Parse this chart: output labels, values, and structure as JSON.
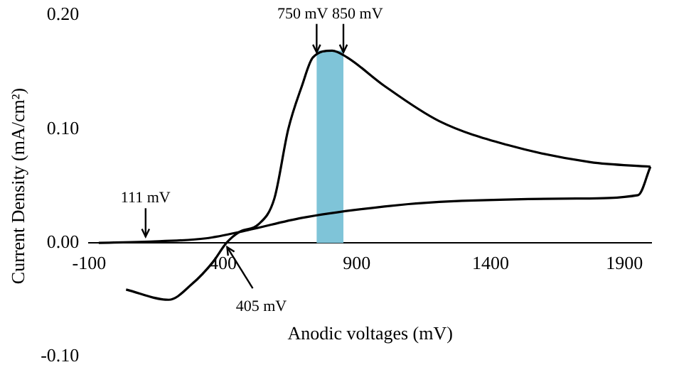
{
  "chart_data": {
    "type": "line",
    "xlabel": "Anodic voltages (mV)",
    "ylabel": "Current Density (mA/cm²)",
    "xlim": [
      -100,
      2000
    ],
    "xticks": [
      -100,
      400,
      900,
      1400,
      1900
    ],
    "ylim": [
      -0.1,
      0.2
    ],
    "yticks": [
      {
        "value": -0.1,
        "label": "-0.10"
      },
      {
        "value": 0,
        "label": "0.00"
      },
      {
        "value": 0.1,
        "label": "0.10"
      },
      {
        "value": 0.2,
        "label": "0.20"
      }
    ],
    "grid": false,
    "legend": false,
    "marker": "none",
    "line_style": "solid",
    "series": [
      {
        "color": "#000000",
        "x": [
          38,
          197,
          285,
          362,
          413,
          464,
          531,
          592,
          644,
          695,
          736,
          808,
          864,
          1003,
          1208,
          1464,
          1772,
          1997
        ],
        "values": [
          -0.041,
          -0.05,
          -0.036,
          -0.017,
          0,
          0.01,
          0.016,
          0.039,
          0.1,
          0.138,
          0.163,
          0.169,
          0.163,
          0.138,
          0.107,
          0.086,
          0.071,
          0.067
        ]
      },
      {
        "color": "#000000",
        "x": [
          1997,
          1951,
          1721,
          1208,
          1003,
          695,
          490,
          336,
          105,
          -64
        ],
        "values": [
          0.067,
          0.042,
          0.039,
          0.036,
          0.032,
          0.022,
          0.011,
          0.004,
          0.001,
          0
        ]
      }
    ],
    "bands": [
      {
        "axis": "x",
        "from": 750,
        "to": 850,
        "color": "#7fc4d8"
      }
    ],
    "annotations": [
      {
        "text": "111 mV",
        "x": 111,
        "y": 0.003
      },
      {
        "text": "405 mV",
        "x": 405,
        "y": 0
      },
      {
        "text": "750 mV",
        "x": 750,
        "y": 0.165
      },
      {
        "text": "850 mV",
        "x": 850,
        "y": 0.165
      }
    ]
  }
}
